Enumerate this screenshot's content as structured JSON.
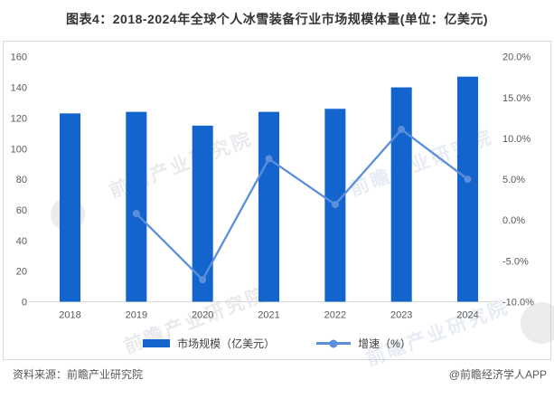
{
  "title": "图表4：2018-2024年全球个人冰雪装备行业市场规模体量(单位：亿美元)",
  "chart_data": {
    "type": "bar+line",
    "categories": [
      "2018",
      "2019",
      "2020",
      "2021",
      "2022",
      "2023",
      "2024"
    ],
    "series": [
      {
        "name": "市场规模（亿美元）",
        "type": "bar",
        "axis": "left",
        "values": [
          123,
          124,
          115,
          124,
          126,
          140,
          147
        ]
      },
      {
        "name": "增速（%）",
        "type": "line",
        "axis": "right",
        "values": [
          null,
          0.8,
          -7.3,
          7.5,
          1.9,
          11.1,
          5.0
        ]
      }
    ],
    "left_axis": {
      "min": 0,
      "max": 160,
      "step": 20,
      "ticks": [
        "0",
        "20",
        "40",
        "60",
        "80",
        "100",
        "120",
        "140",
        "160"
      ]
    },
    "right_axis": {
      "min": -10,
      "max": 20,
      "step": 5,
      "ticks": [
        "-10.0%",
        "-5.0%",
        "0.0%",
        "5.0%",
        "10.0%",
        "15.0%",
        "20.0%"
      ]
    },
    "grid": false,
    "legend_position": "bottom",
    "colors": {
      "bar": "#1464CD",
      "line": "#5B8FDB",
      "axis_line": "#D9D9D9",
      "tick_text": "#595959"
    }
  },
  "legend": {
    "market_size_label": "市场规模（亿美元）",
    "growth_label": "增速（%）"
  },
  "watermark": {
    "text": "前瞻产业研究院"
  },
  "footer": {
    "source": "资料来源：前瞻产业研究院",
    "credit": "@前瞻经济学人APP"
  }
}
